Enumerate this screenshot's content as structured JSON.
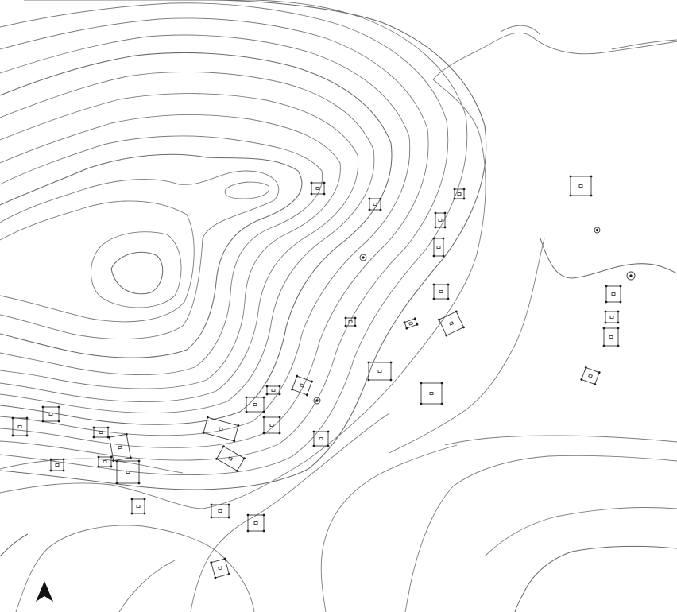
{
  "map": {
    "type": "topographic site plan with contour lines and excavated features",
    "colors": {
      "background": "#ffffff",
      "contour": "#7a7a7a",
      "feature": "#3a3a3a",
      "north_arrow": "#111111"
    },
    "north_arrow": {
      "icon": "north-arrow-icon",
      "direction": "north-up"
    },
    "features": [
      {
        "id": "f1",
        "label": ""
      },
      {
        "id": "f2",
        "label": ""
      },
      {
        "id": "f3",
        "label": ""
      },
      {
        "id": "f4",
        "label": ""
      },
      {
        "id": "f5",
        "label": ""
      },
      {
        "id": "f6",
        "label": ""
      },
      {
        "id": "f7",
        "label": ""
      },
      {
        "id": "f8",
        "label": ""
      },
      {
        "id": "f9",
        "label": ""
      },
      {
        "id": "f10",
        "label": ""
      },
      {
        "id": "f11",
        "label": ""
      },
      {
        "id": "f12",
        "label": ""
      },
      {
        "id": "f13",
        "label": ""
      },
      {
        "id": "f14",
        "label": ""
      },
      {
        "id": "f15",
        "label": ""
      },
      {
        "id": "f16",
        "label": ""
      },
      {
        "id": "f17",
        "label": ""
      },
      {
        "id": "f18",
        "label": ""
      },
      {
        "id": "f19",
        "label": ""
      },
      {
        "id": "f20",
        "label": ""
      },
      {
        "id": "f21",
        "label": ""
      },
      {
        "id": "f22",
        "label": ""
      },
      {
        "id": "f23",
        "label": ""
      },
      {
        "id": "f24",
        "label": ""
      },
      {
        "id": "f25",
        "label": ""
      },
      {
        "id": "f26",
        "label": ""
      },
      {
        "id": "f27",
        "label": ""
      },
      {
        "id": "f28",
        "label": ""
      },
      {
        "id": "f29",
        "label": ""
      },
      {
        "id": "f30",
        "label": ""
      },
      {
        "id": "f31",
        "label": ""
      },
      {
        "id": "f32",
        "label": ""
      }
    ]
  }
}
